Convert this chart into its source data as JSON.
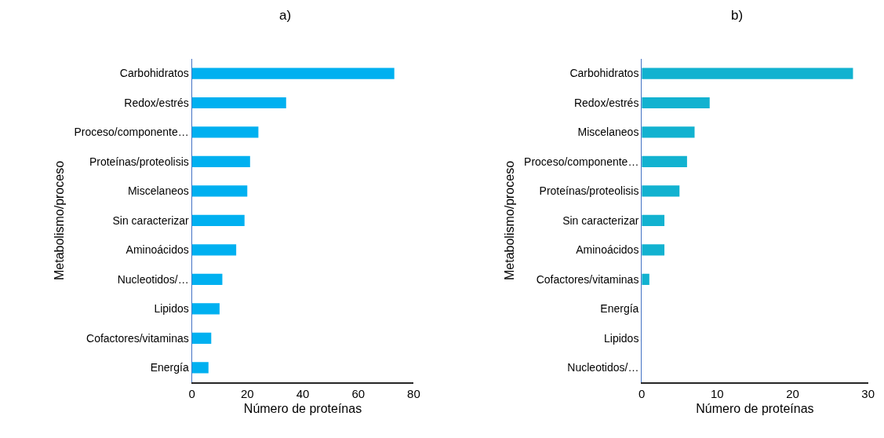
{
  "chart_data": [
    {
      "type": "bar",
      "orientation": "horizontal",
      "title": "a)",
      "xlabel": "Número de proteínas",
      "ylabel": "Metabolismo/proceso",
      "categories": [
        "Carbohidratos",
        "Redox/estrés",
        "Proceso/componente…",
        "Proteínas/proteolisis",
        "Miscelaneos",
        "Sin caracterizar",
        "Aminoácidos",
        "Nucleotidos/…",
        "Lipidos",
        "Cofactores/vitaminas",
        "Energía"
      ],
      "values": [
        73,
        34,
        24,
        21,
        20,
        19,
        16,
        11,
        10,
        7,
        6
      ],
      "color": "#00b0f0",
      "xlim": [
        0,
        80
      ],
      "xticks": [
        0,
        20,
        40,
        60,
        80
      ]
    },
    {
      "type": "bar",
      "orientation": "horizontal",
      "title": "b)",
      "xlabel": "Número de proteínas",
      "ylabel": "Metabolismo/proceso",
      "categories": [
        "Carbohidratos",
        "Redox/estrés",
        "Miscelaneos",
        "Proceso/componente…",
        "Proteínas/proteolisis",
        "Sin caracterizar",
        "Aminoácidos",
        "Cofactores/vitaminas",
        "Energía",
        "Lipidos",
        "Nucleotidos/…"
      ],
      "values": [
        28,
        9,
        7,
        6,
        5,
        3,
        3,
        1,
        0,
        0,
        0
      ],
      "color": "#12b2d0",
      "xlim": [
        0,
        30
      ],
      "xticks": [
        0,
        10,
        20,
        30
      ]
    }
  ]
}
